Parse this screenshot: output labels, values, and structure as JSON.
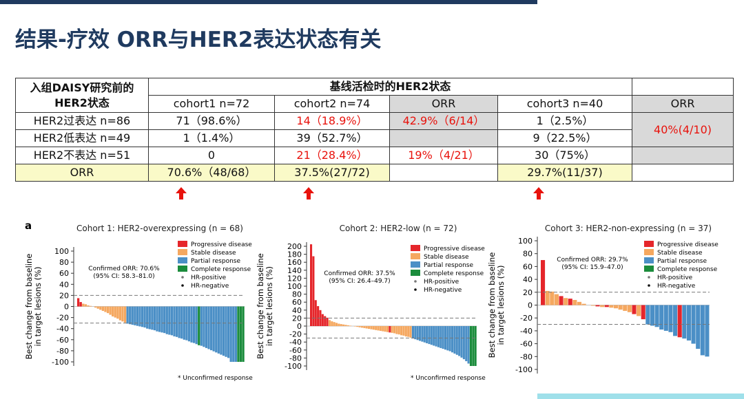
{
  "title": "结果-疗效 ORR与HER2表达状态有关",
  "table": {
    "header_left": [
      "入组DAISY研究前的",
      "HER2状态"
    ],
    "header_group": "基线活检时的HER2状态",
    "columns": [
      "cohort1 n=72",
      "cohort2 n=74",
      "ORR",
      "cohort3 n=40",
      "ORR"
    ],
    "rows": [
      [
        "HER2过表达 n=86",
        "71（98.6%）",
        "14（18.9%）",
        "42.9%（6/14）",
        "1（2.5%）",
        "40%(4/10)"
      ],
      [
        "HER2低表达 n=49",
        "1（1.4%）",
        "39（52.7%）",
        "9（22.5%）"
      ],
      [
        "HER2不表达 n=51",
        "0",
        "21（28.4%）",
        "19%（4/21）",
        "30（75%）"
      ],
      [
        "ORR",
        "70.6%（48/68）",
        "37.5%(27/72)",
        "29.7%(11/37)"
      ]
    ]
  },
  "figure_label": "a",
  "footnote": "* Unconfirmed response",
  "legend": [
    {
      "name": "Progressive disease",
      "color": "#e5262b",
      "marker": "square"
    },
    {
      "name": "Stable disease",
      "color": "#f5a860",
      "marker": "square"
    },
    {
      "name": "Partial response",
      "color": "#4b8fc6",
      "marker": "square"
    },
    {
      "name": "Complete response",
      "color": "#1b8c3c",
      "marker": "square"
    },
    {
      "name": "HR-positive",
      "color": "#777777",
      "marker": "dot"
    },
    {
      "name": "HR-negative",
      "color": "#111111",
      "marker": "dot"
    }
  ],
  "chart_data": [
    {
      "type": "bar",
      "title": "Cohort 1: HER2-overexpressing (n = 68)",
      "ylabel": [
        "Best change from baseline",
        "in target lesions (%)"
      ],
      "annotation": [
        "Confirmed ORR: 70.6%",
        "(95% CI: 58.3–81.0)"
      ],
      "ylim": [
        -100,
        100
      ],
      "yticks": [
        -100,
        -80,
        -60,
        -40,
        -20,
        0,
        20,
        40,
        60,
        80,
        100
      ],
      "reference_lines": [
        20,
        -30
      ],
      "values": [
        15,
        8,
        5,
        4,
        2,
        1,
        0,
        -2,
        -4,
        -6,
        -8,
        -10,
        -12,
        -15,
        -18,
        -20,
        -22,
        -25,
        -27,
        -29,
        -31,
        -32,
        -33,
        -34,
        -35,
        -36,
        -37,
        -38,
        -40,
        -41,
        -42,
        -43,
        -45,
        -46,
        -47,
        -48,
        -50,
        -51,
        -52,
        -54,
        -55,
        -57,
        -58,
        -60,
        -61,
        -63,
        -65,
        -66,
        -68,
        -70,
        -71,
        -73,
        -75,
        -77,
        -79,
        -81,
        -83,
        -85,
        -87,
        -89,
        -91,
        -93,
        -100,
        -100,
        -100,
        -100,
        -100,
        -100
      ],
      "bar_colors": [
        "#e5262b",
        "#e5262b",
        "#f5a860",
        "#f5a860",
        "#f5a860",
        "#f5a860",
        "#f5a860",
        "#f5a860",
        "#f5a860",
        "#f5a860",
        "#f5a860",
        "#f5a860",
        "#f5a860",
        "#f5a860",
        "#f5a860",
        "#f5a860",
        "#f5a860",
        "#f5a860",
        "#f5a860",
        "#f5a860",
        "#4b8fc6",
        "#4b8fc6",
        "#4b8fc6",
        "#4b8fc6",
        "#4b8fc6",
        "#4b8fc6",
        "#4b8fc6",
        "#4b8fc6",
        "#4b8fc6",
        "#4b8fc6",
        "#4b8fc6",
        "#4b8fc6",
        "#4b8fc6",
        "#4b8fc6",
        "#4b8fc6",
        "#4b8fc6",
        "#4b8fc6",
        "#4b8fc6",
        "#4b8fc6",
        "#4b8fc6",
        "#4b8fc6",
        "#4b8fc6",
        "#4b8fc6",
        "#4b8fc6",
        "#4b8fc6",
        "#4b8fc6",
        "#4b8fc6",
        "#4b8fc6",
        "#4b8fc6",
        "#1b8c3c",
        "#4b8fc6",
        "#4b8fc6",
        "#4b8fc6",
        "#4b8fc6",
        "#4b8fc6",
        "#4b8fc6",
        "#4b8fc6",
        "#4b8fc6",
        "#4b8fc6",
        "#4b8fc6",
        "#4b8fc6",
        "#4b8fc6",
        "#4b8fc6",
        "#4b8fc6",
        "#4b8fc6",
        "#1b8c3c",
        "#1b8c3c",
        "#1b8c3c"
      ]
    },
    {
      "type": "bar",
      "title": "Cohort 2: HER2-low (n = 72)",
      "ylabel": [
        "Best change from baseline",
        "in target lesions (%)"
      ],
      "annotation": [
        "Confirmed ORR: 37.5%",
        "(95% CI: 26.4–49.7)"
      ],
      "ylim": [
        -100,
        200
      ],
      "yticks": [
        -100,
        -80,
        -60,
        -40,
        -20,
        0,
        20,
        40,
        60,
        80,
        100,
        120,
        140,
        160,
        180,
        200
      ],
      "reference_lines": [
        20,
        -30
      ],
      "values": [
        205,
        175,
        65,
        50,
        40,
        30,
        25,
        21,
        15,
        12,
        10,
        8,
        6,
        5,
        4,
        3,
        2,
        1,
        0,
        -1,
        -2,
        -3,
        -4,
        -5,
        -6,
        -7,
        -8,
        -9,
        -10,
        -11,
        -12,
        -13,
        -14,
        -15,
        -16,
        -17,
        -18,
        -20,
        -21,
        -23,
        -24,
        -26,
        -27,
        -29,
        -31,
        -33,
        -35,
        -37,
        -39,
        -41,
        -43,
        -45,
        -47,
        -49,
        -51,
        -53,
        -55,
        -57,
        -59,
        -61,
        -63,
        -66,
        -69,
        -72,
        -75,
        -79,
        -83,
        -88,
        -94,
        -100,
        -100,
        -100
      ],
      "bar_colors": [
        "#e5262b",
        "#e5262b",
        "#e5262b",
        "#e5262b",
        "#e5262b",
        "#e5262b",
        "#e5262b",
        "#e5262b",
        "#f5a860",
        "#f5a860",
        "#f5a860",
        "#f5a860",
        "#f5a860",
        "#f5a860",
        "#f5a860",
        "#f5a860",
        "#f5a860",
        "#f5a860",
        "#f5a860",
        "#f5a860",
        "#f5a860",
        "#f5a860",
        "#f5a860",
        "#f5a860",
        "#f5a860",
        "#f5a860",
        "#f5a860",
        "#f5a860",
        "#f5a860",
        "#f5a860",
        "#f5a860",
        "#f5a860",
        "#f5a860",
        "#f5a860",
        "#e5262b",
        "#f5a860",
        "#f5a860",
        "#f5a860",
        "#f5a860",
        "#f5a860",
        "#f5a860",
        "#f5a860",
        "#f5a860",
        "#f5a860",
        "#4b8fc6",
        "#4b8fc6",
        "#4b8fc6",
        "#4b8fc6",
        "#4b8fc6",
        "#4b8fc6",
        "#4b8fc6",
        "#4b8fc6",
        "#4b8fc6",
        "#4b8fc6",
        "#4b8fc6",
        "#4b8fc6",
        "#4b8fc6",
        "#4b8fc6",
        "#4b8fc6",
        "#4b8fc6",
        "#4b8fc6",
        "#4b8fc6",
        "#4b8fc6",
        "#4b8fc6",
        "#4b8fc6",
        "#4b8fc6",
        "#4b8fc6",
        "#4b8fc6",
        "#4b8fc6",
        "#1b8c3c",
        "#1b8c3c",
        "#1b8c3c"
      ]
    },
    {
      "type": "bar",
      "title": "Cohort 3: HER2-non-expressing (n = 37)",
      "ylabel": [
        "Best change from baseline",
        "in target lesions (%)"
      ],
      "annotation": [
        "Confirmed ORR: 29.7%",
        "(95% CI: 15.9–47.0)"
      ],
      "ylim": [
        -100,
        100
      ],
      "yticks": [
        -100,
        -80,
        -60,
        -40,
        -20,
        0,
        20,
        40,
        60,
        80,
        100
      ],
      "reference_lines": [
        20,
        -30
      ],
      "values": [
        70,
        22,
        21,
        17,
        14,
        11,
        10,
        8,
        5,
        2,
        0,
        -1,
        -2,
        -3,
        -3,
        -4,
        -5,
        -7,
        -9,
        -11,
        -14,
        -17,
        -22,
        -30,
        -32,
        -34,
        -38,
        -40,
        -42,
        -48,
        -50,
        -52,
        -55,
        -60,
        -68,
        -78,
        -80
      ],
      "bar_colors": [
        "#e5262b",
        "#f5a860",
        "#f5a860",
        "#f5a860",
        "#e5262b",
        "#f5a860",
        "#e5262b",
        "#f5a860",
        "#f5a860",
        "#f5a860",
        "#f5a860",
        "#f5a860",
        "#e5262b",
        "#f5a860",
        "#e5262b",
        "#f5a860",
        "#f5a860",
        "#f5a860",
        "#f5a860",
        "#f5a860",
        "#e5262b",
        "#f5a860",
        "#e5262b",
        "#4b8fc6",
        "#4b8fc6",
        "#4b8fc6",
        "#4b8fc6",
        "#4b8fc6",
        "#4b8fc6",
        "#4b8fc6",
        "#e5262b",
        "#4b8fc6",
        "#4b8fc6",
        "#4b8fc6",
        "#4b8fc6",
        "#4b8fc6",
        "#4b8fc6"
      ]
    }
  ]
}
